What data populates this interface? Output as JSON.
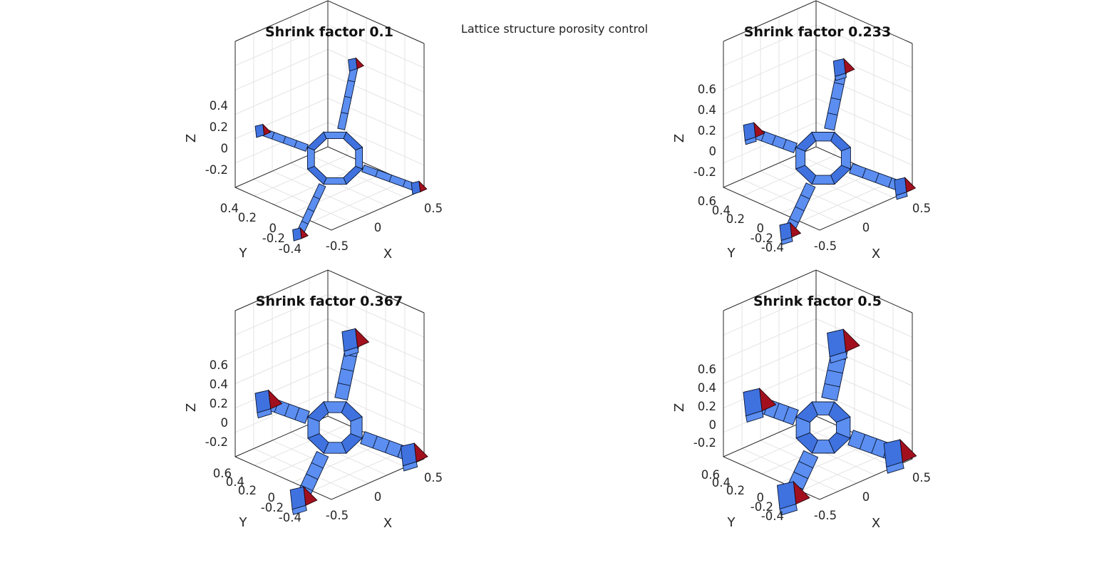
{
  "figure_title": "Lattice structure porosity control",
  "colors": {
    "strut_face": "#5b8ef0",
    "strut_face_dark": "#3f72df",
    "cut_face": "#a2101e",
    "edge": "#0b1530"
  },
  "chart_data": [
    {
      "type": "surface3d",
      "title": "Shrink factor 0.1",
      "shrink_factor": 0.1,
      "xlabel": "X",
      "ylabel": "Y",
      "zlabel": "Z",
      "xticks": [
        "-0.5",
        "0",
        "0.5"
      ],
      "yticks": [
        "-0.4",
        "-0.2",
        "0",
        "0.2",
        "0.4"
      ],
      "zticks": [
        "-0.2",
        "0",
        "0.2",
        "0.4"
      ],
      "grid": true
    },
    {
      "type": "surface3d",
      "title": "Shrink factor 0.233",
      "shrink_factor": 0.233,
      "xlabel": "X",
      "ylabel": "Y",
      "zlabel": "Z",
      "xticks": [
        "-0.5",
        "0",
        "0.5"
      ],
      "yticks": [
        "-0.4",
        "-0.2",
        "0",
        "0.2",
        "0.4",
        "0.6"
      ],
      "zticks": [
        "-0.2",
        "0",
        "0.2",
        "0.4",
        "0.6"
      ],
      "grid": true
    },
    {
      "type": "surface3d",
      "title": "Shrink factor 0.367",
      "shrink_factor": 0.367,
      "xlabel": "X",
      "ylabel": "Y",
      "zlabel": "Z",
      "xticks": [
        "-0.5",
        "0",
        "0.5"
      ],
      "yticks": [
        "-0.4",
        "-0.2",
        "0",
        "0.2",
        "0.4",
        "0.6"
      ],
      "zticks": [
        "-0.2",
        "0",
        "0.2",
        "0.4",
        "0.6"
      ],
      "grid": true
    },
    {
      "type": "surface3d",
      "title": "Shrink factor 0.5",
      "shrink_factor": 0.5,
      "xlabel": "X",
      "ylabel": "Y",
      "zlabel": "Z",
      "xticks": [
        "-0.5",
        "0",
        "0.5"
      ],
      "yticks": [
        "-0.4",
        "-0.2",
        "0",
        "0.2",
        "0.4",
        "0.6"
      ],
      "zticks": [
        "-0.2",
        "0",
        "0.2",
        "0.4",
        "0.6"
      ],
      "grid": true
    }
  ]
}
